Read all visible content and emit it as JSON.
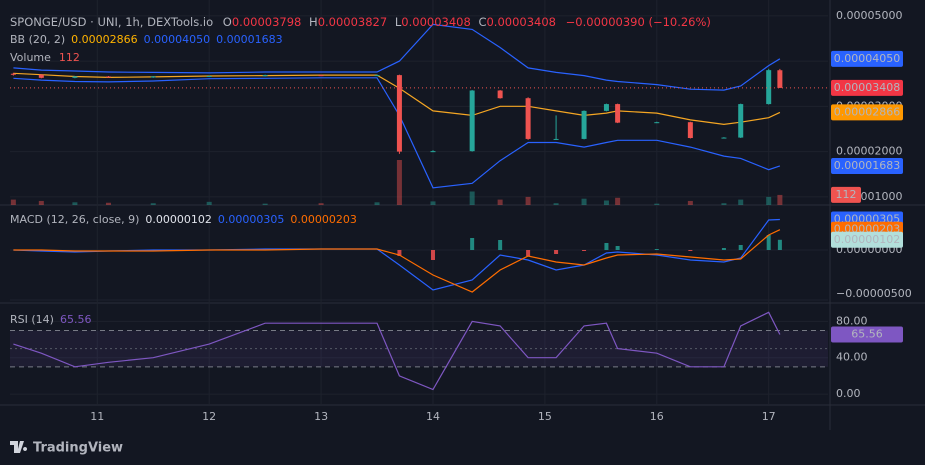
{
  "header": {
    "title": "SPONGE/USD · UNI, 1h, DEXTools.io",
    "ohlc": [
      {
        "key": "O",
        "value": "0.00003798"
      },
      {
        "key": "H",
        "value": "0.00003827"
      },
      {
        "key": "L",
        "value": "0.00003408"
      },
      {
        "key": "C",
        "value": "0.00003408"
      }
    ],
    "change": "−0.00000390 (−10.26%)"
  },
  "chart_data": [
    {
      "type": "candlestick",
      "x": [
        10.25,
        10.5,
        10.8,
        11.1,
        11.5,
        12.0,
        12.5,
        13.0,
        13.5,
        13.7,
        14.0,
        14.35,
        14.6,
        14.85,
        15.1,
        15.35,
        15.55,
        15.65,
        16.0,
        16.3,
        16.6,
        16.75,
        17.0,
        17.1
      ],
      "open": [
        3.72e-05,
        3.7e-05,
        3.63e-05,
        3.66e-05,
        3.64e-05,
        3.66e-05,
        3.67e-05,
        3.69e-05,
        3.68e-05,
        3.69e-05,
        2e-05,
        2.01e-05,
        3.35e-05,
        3.18e-05,
        2.28e-05,
        2.28e-05,
        2.9e-05,
        3.05e-05,
        2.64e-05,
        2.65e-05,
        2.3e-05,
        2.31e-05,
        3.05e-05,
        3.798e-05
      ],
      "high": [
        3.74e-05,
        3.71e-05,
        3.67e-05,
        3.67e-05,
        3.67e-05,
        3.68e-05,
        3.7e-05,
        3.7e-05,
        3.7e-05,
        3.7e-05,
        2.03e-05,
        3.36e-05,
        3.36e-05,
        3.2e-05,
        2.8e-05,
        2.91e-05,
        3.06e-05,
        3.06e-05,
        2.66e-05,
        2.66e-05,
        2.32e-05,
        3.06e-05,
        3.83e-05,
        3.827e-05
      ],
      "low": [
        3.68e-05,
        3.62e-05,
        3.62e-05,
        3.63e-05,
        3.63e-05,
        3.65e-05,
        3.66e-05,
        3.67e-05,
        3.67e-05,
        1.95e-05,
        1.99e-05,
        2e-05,
        3.17e-05,
        2.26e-05,
        2.26e-05,
        2.27e-05,
        2.89e-05,
        2.63e-05,
        2.63e-05,
        2.29e-05,
        2.29e-05,
        2.3e-05,
        3.04e-05,
        3.408e-05
      ],
      "close": [
        3.7e-05,
        3.63e-05,
        3.66e-05,
        3.64e-05,
        3.66e-05,
        3.67e-05,
        3.69e-05,
        3.68e-05,
        3.69e-05,
        2e-05,
        2.01e-05,
        3.35e-05,
        3.18e-05,
        2.28e-05,
        2.28e-05,
        2.9e-05,
        3.05e-05,
        2.64e-05,
        2.65e-05,
        2.3e-05,
        2.31e-05,
        3.05e-05,
        3.8e-05,
        3.408e-05
      ],
      "up_color": "#26a69a",
      "down_color": "#ef5350",
      "indicator": {
        "name": "BB (20, 2)",
        "values": [
          "0.00002866",
          "0.00004050",
          "0.00001683"
        ],
        "colors": [
          "#ffb300",
          "#2962ff",
          "#2962ff"
        ]
      },
      "series": [
        {
          "color": "#f5a623",
          "values": [
            3.73e-05,
            3.7e-05,
            3.66e-05,
            3.64e-05,
            3.65e-05,
            3.67e-05,
            3.68e-05,
            3.69e-05,
            3.69e-05,
            3.4e-05,
            2.9e-05,
            2.8e-05,
            3e-05,
            3e-05,
            2.9e-05,
            2.8e-05,
            2.85e-05,
            2.9e-05,
            2.85e-05,
            2.7e-05,
            2.6e-05,
            2.65e-05,
            2.75e-05,
            2.866e-05
          ]
        },
        {
          "color": "#2962ff",
          "values": [
            3.85e-05,
            3.8e-05,
            3.78e-05,
            3.76e-05,
            3.75e-05,
            3.74e-05,
            3.76e-05,
            3.76e-05,
            3.76e-05,
            4e-05,
            4.81e-05,
            4.7e-05,
            4.3e-05,
            3.85e-05,
            3.75e-05,
            3.68e-05,
            3.58e-05,
            3.55e-05,
            3.48e-05,
            3.38e-05,
            3.36e-05,
            3.45e-05,
            3.9e-05,
            4.05e-05
          ]
        },
        {
          "color": "#2962ff",
          "values": [
            3.62e-05,
            3.58e-05,
            3.55e-05,
            3.54e-05,
            3.56e-05,
            3.61e-05,
            3.62e-05,
            3.63e-05,
            3.63e-05,
            2.8e-05,
            1.2e-05,
            1.3e-05,
            1.8e-05,
            2.2e-05,
            2.2e-05,
            2.1e-05,
            2.2e-05,
            2.25e-05,
            2.25e-05,
            2.1e-05,
            1.9e-05,
            1.85e-05,
            1.6e-05,
            1.683e-05
          ]
        }
      ],
      "volume": {
        "name": "Volume",
        "label": "112",
        "values": [
          60,
          45,
          30,
          25,
          20,
          35,
          15,
          20,
          30,
          500,
          40,
          150,
          60,
          90,
          20,
          70,
          50,
          80,
          15,
          45,
          20,
          60,
          90,
          112
        ]
      },
      "xlim": [
        10.22,
        17.53
      ],
      "xticks": [
        11,
        12,
        13,
        14,
        15,
        16,
        17
      ],
      "ylim": [
        8.2e-06,
        5.35e-05
      ],
      "yticks": [
        {
          "value": 1e-05,
          "label": "0.00001000"
        },
        {
          "value": 2e-05,
          "label": "0.00002000"
        },
        {
          "value": 3e-05,
          "label": "0.00003000"
        },
        {
          "value": 4e-05,
          "label": "0.00004000"
        },
        {
          "value": 5e-05,
          "label": "0.00005000"
        }
      ],
      "grid": true,
      "badges": [
        {
          "value": 4.05e-05,
          "label": "0.00004050",
          "color": "#2962ff"
        },
        {
          "value": 3.408e-05,
          "label": "0.00003408",
          "color": "#f23645"
        },
        {
          "value": 2.866e-05,
          "label": "0.00002866",
          "color": "#ff9800"
        },
        {
          "value": 1.683e-05,
          "label": "0.00001683",
          "color": "#2962ff"
        }
      ]
    },
    {
      "type": "bar",
      "x": [
        10.25,
        10.5,
        10.8,
        11.1,
        11.5,
        12.0,
        12.5,
        13.0,
        13.5,
        13.7,
        14.0,
        14.35,
        14.6,
        14.85,
        15.1,
        15.35,
        15.55,
        15.65,
        16.0,
        16.3,
        16.6,
        16.75,
        17.0,
        17.1
      ],
      "values": [
        0,
        0,
        0,
        0,
        0,
        0,
        0,
        0,
        0,
        -6e-07,
        -1e-06,
        1.2e-06,
        1e-06,
        -6e-07,
        -4e-07,
        -1e-07,
        7e-07,
        4e-07,
        1e-07,
        -1e-07,
        2e-07,
        5e-07,
        1.5e-06,
        1.02e-06
      ],
      "up_color": "#26a69a",
      "down_color": "#ff5252",
      "indicator": {
        "name": "MACD (12, 26, close, 9)",
        "values": [
          "0.00000102",
          "0.00000305",
          "0.00000203"
        ],
        "colors": [
          "#e0e3eb",
          "#2962ff",
          "#ff6d00"
        ]
      },
      "series": [
        {
          "color": "#2962ff",
          "values": [
            0,
            -1e-07,
            -2e-07,
            -1e-07,
            0,
            0,
            1e-07,
            1e-07,
            1e-07,
            -1.5e-06,
            -4e-06,
            -3e-06,
            -5e-07,
            -1e-06,
            -2e-06,
            -1.5e-06,
            -3e-07,
            -2e-07,
            -5e-07,
            -1e-06,
            -1.2e-06,
            -8e-07,
            3e-06,
            3.05e-06
          ]
        },
        {
          "color": "#ff6d00",
          "values": [
            0,
            0,
            -1e-07,
            -1e-07,
            -1e-07,
            0,
            0,
            1e-07,
            1e-07,
            -5e-07,
            -2.5e-06,
            -4.2e-06,
            -2e-06,
            -6e-07,
            -1.2e-06,
            -1.5e-06,
            -8e-07,
            -5e-07,
            -4e-07,
            -7e-07,
            -1e-06,
            -9e-07,
            1.5e-06,
            2.03e-06
          ]
        }
      ],
      "ylim": [
        -5e-06,
        4.3e-06
      ],
      "yticks": [
        {
          "value": 0,
          "label": "0.00000000"
        },
        {
          "value": -5e-06,
          "label": "−0.00000500"
        }
      ],
      "grid": true,
      "badges": [
        {
          "value": 3.05e-06,
          "label": "0.00000305",
          "color": "#2962ff"
        },
        {
          "value": 2.03e-06,
          "label": "0.00000203",
          "color": "#ff6d00"
        },
        {
          "value": 1.02e-06,
          "label": "0.00000102",
          "color": "#b2dfdb"
        }
      ]
    },
    {
      "type": "line",
      "x": [
        10.25,
        10.5,
        10.8,
        11.1,
        11.5,
        12.0,
        12.5,
        13.0,
        13.5,
        13.7,
        14.0,
        14.35,
        14.6,
        14.85,
        15.1,
        15.35,
        15.55,
        15.65,
        16.0,
        16.3,
        16.6,
        16.75,
        17.0,
        17.1
      ],
      "indicator": {
        "name": "RSI (14)",
        "values": [
          "65.56"
        ],
        "colors": [
          "#7e57c2"
        ]
      },
      "series": [
        {
          "color": "#7e57c2",
          "values": [
            55,
            45,
            30,
            35,
            40,
            55,
            78,
            78,
            78,
            20,
            5,
            80,
            75,
            40,
            40,
            75,
            78,
            50,
            45,
            30,
            30,
            75,
            90,
            65.56
          ]
        }
      ],
      "bands": [
        30,
        70
      ],
      "midline": 50,
      "ylim": [
        -12,
        98
      ],
      "yticks": [
        {
          "value": 0,
          "label": "0.00"
        },
        {
          "value": 40,
          "label": "40.00"
        },
        {
          "value": 80,
          "label": "80.00"
        }
      ],
      "grid": true,
      "badges": [
        {
          "value": 65.56,
          "label": "65.56",
          "color": "#7e57c2"
        }
      ]
    }
  ],
  "footer": {
    "brand": "TradingView"
  }
}
